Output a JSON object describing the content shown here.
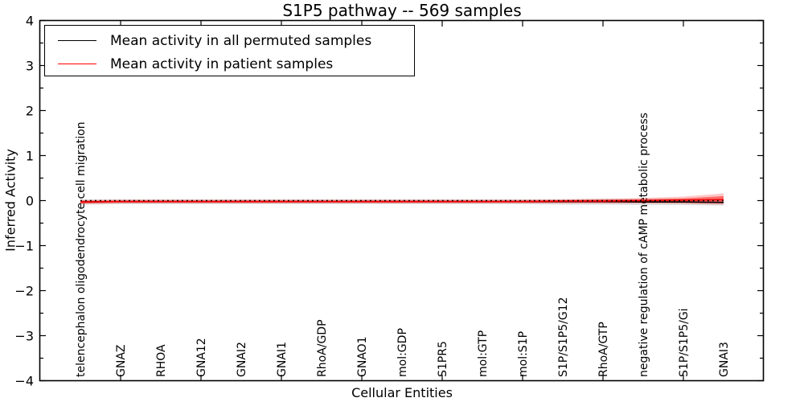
{
  "chart_data": {
    "type": "line",
    "title": "S1P5 pathway -- 569 samples",
    "xlabel": "Cellular Entities",
    "ylabel": "Inferred Activity",
    "ylim": [
      -4,
      4
    ],
    "xlim": [
      -1,
      17
    ],
    "grid": false,
    "legend_position": "upper left",
    "categories": [
      "telencephalon oligodendrocyte cell migration",
      "GNAZ",
      "RHOA",
      "GNA12",
      "GNAI2",
      "GNAI1",
      "RhoA/GDP",
      "GNAO1",
      "mol:GDP",
      "S1PR5",
      "mol:GTP",
      "mol:S1P",
      "S1P/S1P5/G12",
      "RhoA/GTP",
      "negative regulation of cAMP metabolic process",
      "S1P/S1P5/Gi",
      "GNAI3"
    ],
    "yticks": [
      {
        "value": 4,
        "label": "4"
      },
      {
        "value": 3,
        "label": "3"
      },
      {
        "value": 2,
        "label": "2"
      },
      {
        "value": 1,
        "label": "1"
      },
      {
        "value": 0,
        "label": "0"
      },
      {
        "value": -1,
        "label": "−1"
      },
      {
        "value": -2,
        "label": "−2"
      },
      {
        "value": -3,
        "label": "−3"
      },
      {
        "value": -4,
        "label": "−4"
      }
    ],
    "series": [
      {
        "id": "permuted-mean-line",
        "name": "Mean activity in all permuted samples",
        "color": "#000000",
        "style": "solid",
        "values": [
          -0.03,
          -0.02,
          -0.02,
          -0.02,
          -0.02,
          -0.02,
          -0.02,
          -0.02,
          -0.02,
          -0.02,
          -0.02,
          -0.02,
          -0.02,
          -0.02,
          -0.03,
          -0.03,
          -0.04
        ]
      },
      {
        "id": "patient-mean-line",
        "name": "Mean activity in patient samples",
        "color": "#ff0000",
        "style": "solid",
        "values": [
          -0.03,
          -0.02,
          -0.02,
          -0.02,
          -0.02,
          -0.02,
          -0.02,
          -0.02,
          -0.02,
          -0.02,
          -0.02,
          -0.02,
          -0.01,
          -0.01,
          0.0,
          0.01,
          0.02
        ]
      }
    ],
    "reference_line": {
      "id": "zero-reference-line",
      "y": 0,
      "color": "#000000",
      "style": "dotted"
    },
    "bands": [
      {
        "name": "permuted-std-band",
        "color": "#808080",
        "opacity": 0.25,
        "upper": [
          0.03,
          0.03,
          0.03,
          0.03,
          0.03,
          0.03,
          0.03,
          0.03,
          0.03,
          0.03,
          0.03,
          0.03,
          0.03,
          0.04,
          0.04,
          0.04,
          0.05
        ],
        "lower": [
          -0.09,
          -0.08,
          -0.08,
          -0.08,
          -0.08,
          -0.08,
          -0.08,
          -0.08,
          -0.08,
          -0.08,
          -0.08,
          -0.08,
          -0.09,
          -0.09,
          -0.1,
          -0.1,
          -0.11
        ]
      },
      {
        "name": "patient-std-outer-band",
        "color": "#ff0000",
        "opacity": 0.22,
        "upper": [
          0.01,
          0.02,
          0.02,
          0.02,
          0.02,
          0.02,
          0.02,
          0.02,
          0.02,
          0.02,
          0.02,
          0.02,
          0.03,
          0.04,
          0.06,
          0.09,
          0.16
        ],
        "lower": [
          -0.08,
          -0.06,
          -0.06,
          -0.06,
          -0.06,
          -0.06,
          -0.06,
          -0.06,
          -0.06,
          -0.06,
          -0.06,
          -0.06,
          -0.06,
          -0.06,
          -0.06,
          -0.07,
          -0.09
        ]
      },
      {
        "name": "patient-std-inner-band",
        "color": "#ff0000",
        "opacity": 0.45,
        "upper": [
          0.0,
          0.0,
          0.0,
          0.0,
          0.0,
          0.0,
          0.0,
          0.0,
          0.0,
          0.0,
          0.0,
          0.0,
          0.01,
          0.02,
          0.03,
          0.05,
          0.1
        ],
        "lower": [
          -0.06,
          -0.05,
          -0.05,
          -0.05,
          -0.05,
          -0.05,
          -0.05,
          -0.05,
          -0.05,
          -0.05,
          -0.05,
          -0.05,
          -0.05,
          -0.05,
          -0.05,
          -0.05,
          -0.06
        ]
      }
    ]
  }
}
